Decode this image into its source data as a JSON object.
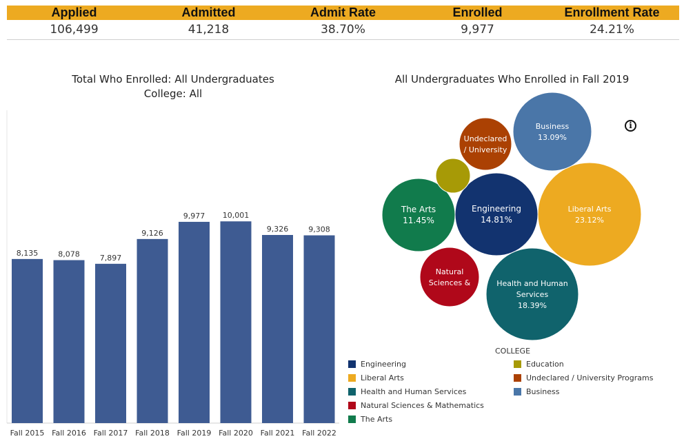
{
  "kpis": {
    "headers": [
      "Applied",
      "Admitted",
      "Admit Rate",
      "Enrolled",
      "Enrollment Rate"
    ],
    "values": [
      "106,499",
      "41,218",
      "38.70%",
      "9,977",
      "24.21%"
    ]
  },
  "colors": {
    "header_bg": "#edaa21",
    "bar": "#3e5b92"
  },
  "chart_data": [
    {
      "type": "bar",
      "title": "Total Who Enrolled: All Undergraduates",
      "subtitle": "College: All",
      "categories": [
        "Fall 2015",
        "Fall 2016",
        "Fall 2017",
        "Fall 2018",
        "Fall 2019",
        "Fall 2020",
        "Fall 2021",
        "Fall 2022"
      ],
      "values": [
        8135,
        8078,
        7897,
        9126,
        9977,
        10001,
        9326,
        9308
      ],
      "value_labels": [
        "8,135",
        "8,078",
        "7,897",
        "9,126",
        "9,977",
        "10,001",
        "9,326",
        "9,308"
      ],
      "ylim": [
        0,
        11000
      ],
      "grid": false,
      "color": "#3e5b92"
    },
    {
      "type": "bubble",
      "title": "All Undergraduates Who Enrolled  in Fall 2019",
      "legend_title": "COLLEGE",
      "legend_placement": "bottom",
      "slices": [
        {
          "name": "Engineering",
          "lines": [
            "Engineering",
            "14.81%"
          ],
          "share": 14.81,
          "color": "#12336f"
        },
        {
          "name": "Liberal Arts",
          "lines": [
            "Liberal Arts",
            "23.12%"
          ],
          "share": 23.12,
          "color": "#edaa21"
        },
        {
          "name": "Health and Human Services",
          "lines": [
            "Health and Human",
            "Services",
            "18.39%"
          ],
          "share": 18.39,
          "color": "#10636c"
        },
        {
          "name": "Natural Sciences & Mathematics",
          "lines": [
            "Natural",
            "Sciences &"
          ],
          "share": 9.0,
          "color": "#b0081a"
        },
        {
          "name": "The Arts",
          "lines": [
            "The Arts",
            "11.45%"
          ],
          "share": 11.45,
          "color": "#117b4c"
        },
        {
          "name": "Education",
          "lines": [],
          "share": 2.7,
          "color": "#a79a06"
        },
        {
          "name": "Undeclared / University Programs",
          "lines": [
            "Undeclared",
            "/ University"
          ],
          "share": 7.4,
          "color": "#ab4103"
        },
        {
          "name": "Business",
          "lines": [
            "Business",
            "13.09%"
          ],
          "share": 13.09,
          "color": "#4a76a8"
        }
      ],
      "legend": [
        {
          "label": "Engineering",
          "color": "#12336f"
        },
        {
          "label": "Liberal Arts",
          "color": "#edaa21"
        },
        {
          "label": "Health and Human Services",
          "color": "#10636c"
        },
        {
          "label": "Natural Sciences & Mathematics",
          "color": "#b0081a"
        },
        {
          "label": "The Arts",
          "color": "#117b4c"
        },
        {
          "label": "Education",
          "color": "#a79a06"
        },
        {
          "label": "Undeclared / University Programs",
          "color": "#ab4103"
        },
        {
          "label": "Business",
          "color": "#4a76a8"
        }
      ]
    }
  ]
}
